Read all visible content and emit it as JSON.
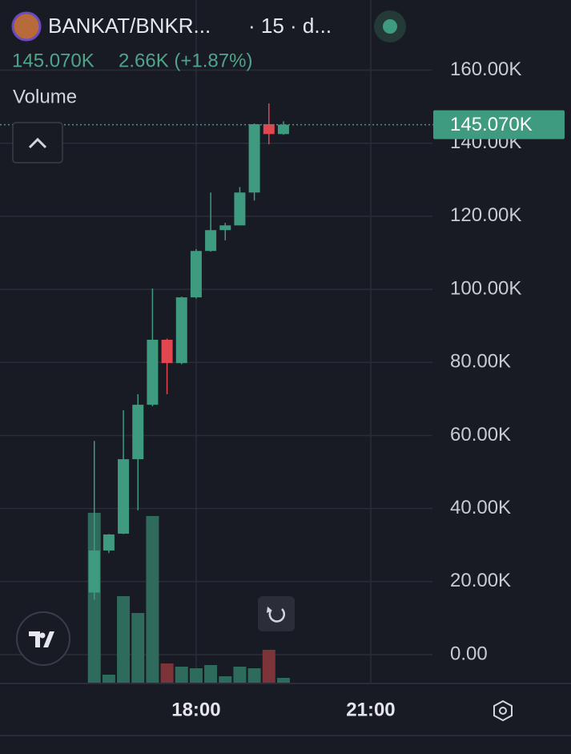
{
  "header": {
    "symbol": "BANKAT/BNKR...",
    "interval": "· 15 · d...",
    "price": "145.070K",
    "change": "2.66K (+1.87%)",
    "indicator": "Volume"
  },
  "chart_data": {
    "type": "candlestick",
    "x": [
      16.25,
      16.5,
      16.75,
      17,
      17.25,
      17.5,
      17.75,
      18,
      18.25,
      18.5,
      18.75,
      19,
      19.25,
      19.5
    ],
    "open": [
      17000,
      28500,
      33100,
      53500,
      68400,
      86200,
      79800,
      97800,
      110500,
      116200,
      117500,
      126500,
      145200,
      142500
    ],
    "high": [
      58500,
      33000,
      66900,
      71300,
      100200,
      86500,
      98000,
      111000,
      126500,
      118200,
      128000,
      145400,
      150900,
      146000
    ],
    "low": [
      15000,
      27800,
      33000,
      39500,
      68000,
      71300,
      79500,
      97500,
      110300,
      113400,
      117500,
      124300,
      139700,
      142300
    ],
    "close": [
      28500,
      32900,
      53500,
      68400,
      86200,
      79800,
      97800,
      110500,
      116200,
      117500,
      126500,
      145200,
      142500,
      145070
    ],
    "volume": [
      213,
      11,
      109,
      88,
      209,
      25,
      21,
      19,
      23,
      9,
      21,
      19,
      42,
      7
    ],
    "up_color": "#3f9b80",
    "down_color": "#e0474e",
    "volume_up_color": "#2f6b5c",
    "volume_down_color": "#7c3439",
    "last_price": {
      "value": 145070,
      "label": "145.070K"
    },
    "xlim": [
      14.63,
      22.06
    ],
    "xticks": [
      {
        "value": 18,
        "label": "18:00"
      },
      {
        "value": 21,
        "label": "21:00"
      }
    ],
    "ylim": [
      -7900,
      179200
    ],
    "yticks": [
      {
        "value": 0,
        "label": "0.00"
      },
      {
        "value": 20000,
        "label": "20.00K"
      },
      {
        "value": 40000,
        "label": "40.00K"
      },
      {
        "value": 60000,
        "label": "60.00K"
      },
      {
        "value": 80000,
        "label": "80.00K"
      },
      {
        "value": 100000,
        "label": "100.00K"
      },
      {
        "value": 120000,
        "label": "120.00K"
      },
      {
        "value": 140000,
        "label": "140.00K"
      },
      {
        "value": 160000,
        "label": "160.00K"
      }
    ],
    "grid": true
  }
}
